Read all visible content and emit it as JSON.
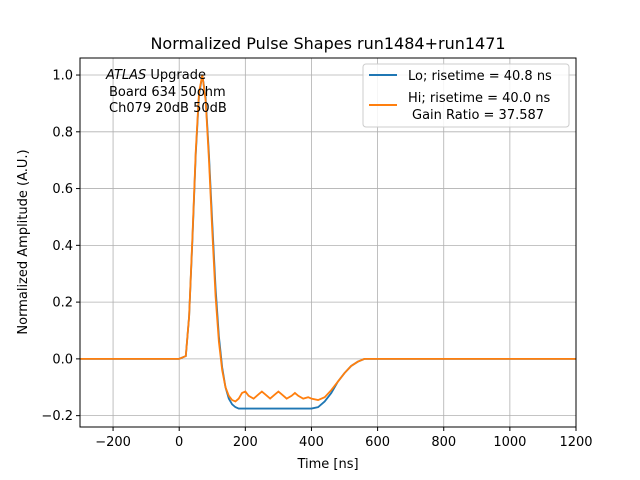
{
  "chart_data": {
    "type": "line",
    "title": "Normalized Pulse Shapes run1484+run1471",
    "xlabel": "Time [ns]",
    "ylabel": "Normalized Amplitude (A.U.)",
    "xlim": [
      -300,
      1200
    ],
    "ylim": [
      -0.24,
      1.06
    ],
    "xticks": [
      -200,
      0,
      200,
      400,
      600,
      800,
      1000,
      1200
    ],
    "yticks": [
      -0.2,
      0.0,
      0.2,
      0.4,
      0.6,
      0.8,
      1.0
    ],
    "xtick_labels": [
      "−200",
      "0",
      "200",
      "400",
      "600",
      "800",
      "1000",
      "1200"
    ],
    "ytick_labels": [
      "−0.2",
      "0.0",
      "0.2",
      "0.4",
      "0.6",
      "0.8",
      "1.0"
    ],
    "grid": true,
    "legend_position": "top-right",
    "annotation": {
      "line1_italic": "ATLAS",
      "line1_rest": " Upgrade",
      "line2": "Board 634 50ohm",
      "line3": "Ch079 20dB 50dB"
    },
    "series": [
      {
        "name": "Lo; risetime = 40.8 ns",
        "color": "#1f77b4",
        "x": [
          -300,
          -200,
          -100,
          0,
          20,
          30,
          40,
          50,
          60,
          70,
          80,
          90,
          100,
          110,
          120,
          130,
          140,
          150,
          160,
          170,
          180,
          190,
          200,
          250,
          300,
          350,
          400,
          420,
          440,
          460,
          480,
          500,
          520,
          540,
          560,
          600,
          700,
          800,
          900,
          1000,
          1100,
          1200
        ],
        "y": [
          0.0,
          0.0,
          0.0,
          0.0,
          0.01,
          0.15,
          0.42,
          0.72,
          0.93,
          1.0,
          0.92,
          0.72,
          0.48,
          0.25,
          0.08,
          -0.03,
          -0.1,
          -0.14,
          -0.16,
          -0.17,
          -0.175,
          -0.175,
          -0.175,
          -0.175,
          -0.175,
          -0.175,
          -0.175,
          -0.17,
          -0.15,
          -0.12,
          -0.08,
          -0.05,
          -0.025,
          -0.01,
          0.0,
          0.0,
          0.0,
          0.0,
          0.0,
          0.0,
          0.0,
          0.0
        ]
      },
      {
        "name": "Hi; risetime = 40.0 ns",
        "name_line2": "Gain Ratio = 37.587",
        "color": "#ff7f0e",
        "x": [
          -300,
          -200,
          -100,
          0,
          20,
          30,
          40,
          50,
          60,
          70,
          80,
          90,
          100,
          110,
          120,
          130,
          140,
          150,
          160,
          170,
          180,
          190,
          200,
          210,
          225,
          240,
          250,
          260,
          275,
          290,
          300,
          310,
          325,
          340,
          350,
          360,
          375,
          390,
          400,
          420,
          440,
          460,
          480,
          500,
          520,
          540,
          560,
          600,
          700,
          800,
          900,
          1000,
          1100,
          1200
        ],
        "y": [
          0.0,
          0.0,
          0.0,
          0.0,
          0.01,
          0.15,
          0.43,
          0.73,
          0.94,
          1.0,
          0.91,
          0.7,
          0.45,
          0.22,
          0.06,
          -0.04,
          -0.1,
          -0.13,
          -0.145,
          -0.15,
          -0.14,
          -0.12,
          -0.115,
          -0.13,
          -0.14,
          -0.125,
          -0.115,
          -0.125,
          -0.14,
          -0.125,
          -0.115,
          -0.125,
          -0.14,
          -0.13,
          -0.12,
          -0.13,
          -0.14,
          -0.135,
          -0.14,
          -0.145,
          -0.135,
          -0.11,
          -0.08,
          -0.05,
          -0.025,
          -0.01,
          0.0,
          0.0,
          0.0,
          0.0,
          0.0,
          0.0,
          0.0,
          0.0
        ]
      }
    ]
  }
}
